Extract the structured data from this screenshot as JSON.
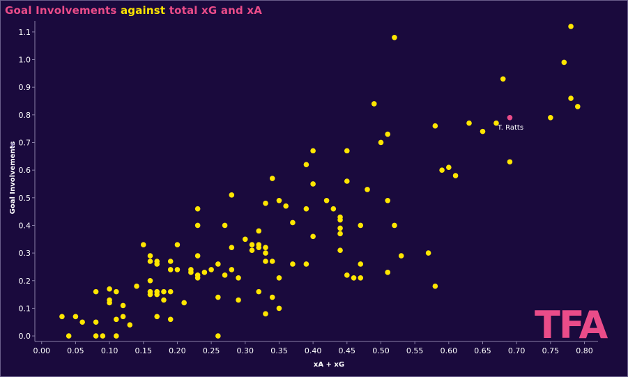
{
  "title": {
    "part1": "Goal Involvements",
    "part2": "against",
    "part3": "total xG and xA"
  },
  "logo": {
    "text": "TFA"
  },
  "colors": {
    "background": "#1a0a3d",
    "accent_pink": "#ea4c89",
    "accent_yellow": "#ffe600",
    "axis_text": "#ffffff"
  },
  "icons": {
    "axis_sort": "pin-icon"
  },
  "chart_data": {
    "type": "scatter",
    "title": "Goal Involvements against total xG and xA",
    "xlabel": "xA + xG",
    "ylabel": "Goal Involvements",
    "xlim": [
      -0.01,
      0.82
    ],
    "ylim": [
      -0.02,
      1.14
    ],
    "xticks": [
      "0.00",
      "0.05",
      "0.10",
      "0.15",
      "0.20",
      "0.25",
      "0.30",
      "0.35",
      "0.40",
      "0.45",
      "0.50",
      "0.55",
      "0.60",
      "0.65",
      "0.70",
      "0.75",
      "0.80"
    ],
    "xtick_values": [
      0,
      0.05,
      0.1,
      0.15,
      0.2,
      0.25,
      0.3,
      0.35,
      0.4,
      0.45,
      0.5,
      0.55,
      0.6,
      0.65,
      0.7,
      0.75,
      0.8
    ],
    "yticks": [
      "0.0",
      "0.1",
      "0.2",
      "0.3",
      "0.4",
      "0.5",
      "0.6",
      "0.7",
      "0.8",
      "0.9",
      "1.0",
      "1.1"
    ],
    "ytick_values": [
      0,
      0.1,
      0.2,
      0.3,
      0.4,
      0.5,
      0.6,
      0.7,
      0.8,
      0.9,
      1.0,
      1.1
    ],
    "grid": false,
    "highlight": {
      "name": "T. Ratts",
      "x": 0.69,
      "y": 0.79
    },
    "points": [
      [
        0.78,
        1.12
      ],
      [
        0.52,
        1.08
      ],
      [
        0.77,
        0.99
      ],
      [
        0.68,
        0.93
      ],
      [
        0.78,
        0.86
      ],
      [
        0.49,
        0.84
      ],
      [
        0.79,
        0.83
      ],
      [
        0.75,
        0.79
      ],
      [
        0.63,
        0.77
      ],
      [
        0.67,
        0.77
      ],
      [
        0.58,
        0.76
      ],
      [
        0.65,
        0.74
      ],
      [
        0.51,
        0.73
      ],
      [
        0.5,
        0.7
      ],
      [
        0.4,
        0.67
      ],
      [
        0.45,
        0.67
      ],
      [
        0.69,
        0.63
      ],
      [
        0.39,
        0.62
      ],
      [
        0.6,
        0.61
      ],
      [
        0.59,
        0.6
      ],
      [
        0.61,
        0.58
      ],
      [
        0.34,
        0.57
      ],
      [
        0.45,
        0.56
      ],
      [
        0.4,
        0.55
      ],
      [
        0.48,
        0.53
      ],
      [
        0.28,
        0.51
      ],
      [
        0.35,
        0.49
      ],
      [
        0.42,
        0.49
      ],
      [
        0.51,
        0.49
      ],
      [
        0.33,
        0.48
      ],
      [
        0.36,
        0.47
      ],
      [
        0.23,
        0.46
      ],
      [
        0.39,
        0.46
      ],
      [
        0.43,
        0.46
      ],
      [
        0.44,
        0.43
      ],
      [
        0.44,
        0.42
      ],
      [
        0.37,
        0.41
      ],
      [
        0.23,
        0.4
      ],
      [
        0.27,
        0.4
      ],
      [
        0.47,
        0.4
      ],
      [
        0.52,
        0.4
      ],
      [
        0.44,
        0.39
      ],
      [
        0.32,
        0.38
      ],
      [
        0.44,
        0.37
      ],
      [
        0.4,
        0.36
      ],
      [
        0.3,
        0.35
      ],
      [
        0.15,
        0.33
      ],
      [
        0.2,
        0.33
      ],
      [
        0.31,
        0.33
      ],
      [
        0.32,
        0.33
      ],
      [
        0.28,
        0.32
      ],
      [
        0.32,
        0.32
      ],
      [
        0.33,
        0.32
      ],
      [
        0.31,
        0.31
      ],
      [
        0.44,
        0.31
      ],
      [
        0.57,
        0.3
      ],
      [
        0.33,
        0.3
      ],
      [
        0.16,
        0.29
      ],
      [
        0.23,
        0.29
      ],
      [
        0.53,
        0.29
      ],
      [
        0.16,
        0.27
      ],
      [
        0.17,
        0.27
      ],
      [
        0.19,
        0.27
      ],
      [
        0.34,
        0.27
      ],
      [
        0.33,
        0.27
      ],
      [
        0.17,
        0.26
      ],
      [
        0.26,
        0.26
      ],
      [
        0.37,
        0.26
      ],
      [
        0.39,
        0.26
      ],
      [
        0.47,
        0.26
      ],
      [
        0.19,
        0.24
      ],
      [
        0.2,
        0.24
      ],
      [
        0.22,
        0.24
      ],
      [
        0.25,
        0.24
      ],
      [
        0.28,
        0.24
      ],
      [
        0.22,
        0.23
      ],
      [
        0.24,
        0.23
      ],
      [
        0.51,
        0.23
      ],
      [
        0.23,
        0.22
      ],
      [
        0.27,
        0.22
      ],
      [
        0.45,
        0.22
      ],
      [
        0.23,
        0.21
      ],
      [
        0.29,
        0.21
      ],
      [
        0.35,
        0.21
      ],
      [
        0.46,
        0.21
      ],
      [
        0.47,
        0.21
      ],
      [
        0.16,
        0.2
      ],
      [
        0.14,
        0.18
      ],
      [
        0.58,
        0.18
      ],
      [
        0.1,
        0.17
      ],
      [
        0.08,
        0.16
      ],
      [
        0.11,
        0.16
      ],
      [
        0.16,
        0.16
      ],
      [
        0.17,
        0.16
      ],
      [
        0.18,
        0.16
      ],
      [
        0.19,
        0.16
      ],
      [
        0.32,
        0.16
      ],
      [
        0.16,
        0.15
      ],
      [
        0.17,
        0.15
      ],
      [
        0.34,
        0.14
      ],
      [
        0.26,
        0.14
      ],
      [
        0.1,
        0.13
      ],
      [
        0.18,
        0.13
      ],
      [
        0.29,
        0.13
      ],
      [
        0.1,
        0.12
      ],
      [
        0.21,
        0.12
      ],
      [
        0.12,
        0.11
      ],
      [
        0.35,
        0.1
      ],
      [
        0.33,
        0.08
      ],
      [
        0.03,
        0.07
      ],
      [
        0.05,
        0.07
      ],
      [
        0.12,
        0.07
      ],
      [
        0.17,
        0.07
      ],
      [
        0.11,
        0.06
      ],
      [
        0.19,
        0.06
      ],
      [
        0.06,
        0.05
      ],
      [
        0.08,
        0.05
      ],
      [
        0.13,
        0.04
      ],
      [
        0.04,
        0.0
      ],
      [
        0.08,
        0.0
      ],
      [
        0.09,
        0.0
      ],
      [
        0.11,
        0.0
      ],
      [
        0.26,
        0.0
      ]
    ]
  }
}
